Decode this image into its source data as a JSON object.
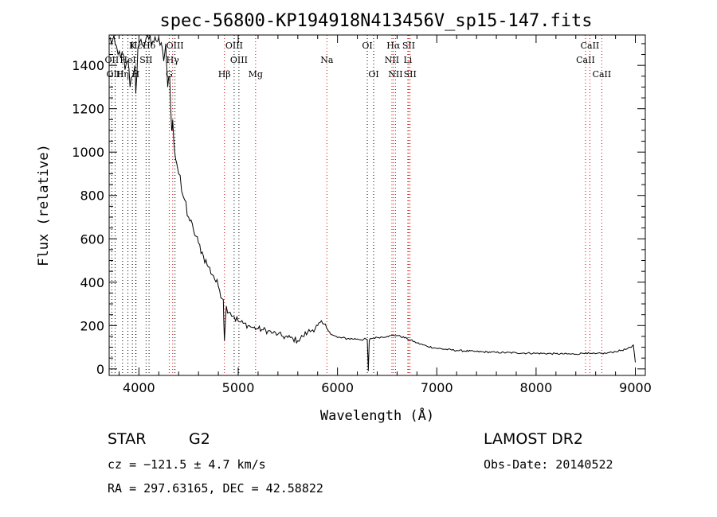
{
  "chart_data": {
    "type": "line",
    "title": "spec-56800-KP194918N413456V_sp15-147.fits",
    "xlabel": "Wavelength (Å)",
    "ylabel": "Flux (relative)",
    "xlim": [
      3700,
      9100
    ],
    "ylim": [
      -30,
      1540
    ],
    "xticks": [
      4000,
      5000,
      6000,
      7000,
      8000,
      9000
    ],
    "yticks": [
      0,
      200,
      400,
      600,
      800,
      1000,
      1200,
      1400
    ],
    "grid": false,
    "series": [
      {
        "x": [
          3700,
          3760,
          3790,
          3830,
          3860,
          3890,
          3910,
          3935,
          3960,
          3968,
          3990,
          4020,
          4060,
          4100,
          4150,
          4200,
          4250,
          4270,
          4290,
          4310,
          4330,
          4340,
          4360,
          4380,
          4400,
          4430,
          4460,
          4500,
          4550,
          4600,
          4650,
          4700,
          4750,
          4800,
          4850,
          4861,
          4880,
          4920,
          4960,
          5000,
          5050,
          5100,
          5150,
          5200,
          5250,
          5300,
          5350,
          5400,
          5450,
          5500,
          5550,
          5600,
          5650,
          5700,
          5750,
          5800,
          5850,
          5890,
          5920,
          5960,
          6000,
          6100,
          6200,
          6300,
          6310,
          6320,
          6330,
          6400,
          6500,
          6563,
          6600,
          6700,
          6800,
          6900,
          7000,
          7200,
          7400,
          7600,
          7800,
          8000,
          8200,
          8400,
          8500,
          8542,
          8600,
          8700,
          8800,
          8900,
          8960,
          8980,
          9000
        ],
        "y": [
          1520,
          1500,
          1450,
          1460,
          1380,
          1420,
          1300,
          1350,
          1400,
          1270,
          1480,
          1520,
          1500,
          1520,
          1510,
          1530,
          1420,
          1500,
          1300,
          1350,
          1100,
          1150,
          1000,
          950,
          900,
          820,
          780,
          700,
          640,
          580,
          520,
          470,
          430,
          380,
          320,
          130,
          290,
          260,
          240,
          220,
          210,
          200,
          190,
          185,
          180,
          175,
          165,
          160,
          150,
          145,
          140,
          130,
          150,
          170,
          180,
          200,
          210,
          190,
          170,
          155,
          145,
          140,
          138,
          135,
          -10,
          130,
          140,
          145,
          150,
          155,
          155,
          140,
          120,
          105,
          95,
          85,
          80,
          76,
          74,
          72,
          70,
          68,
          75,
          70,
          70,
          72,
          80,
          90,
          100,
          110,
          30
        ]
      }
    ],
    "lines": [
      {
        "name": "Hε",
        "wl": 3970,
        "color": "#000000",
        "row": 1
      },
      {
        "name": "K",
        "wl": 3934,
        "color": "#000000",
        "row": 1
      },
      {
        "name": "Hδ",
        "wl": 4102,
        "color": "#000000",
        "row": 1
      },
      {
        "name": "OIII",
        "wl": 4363,
        "color": "#000000",
        "row": 1
      },
      {
        "name": "OIII",
        "wl": 4959,
        "color": "#000000",
        "row": 1
      },
      {
        "name": "OI",
        "wl": 6300,
        "color": "#000000",
        "row": 1
      },
      {
        "name": "Hα",
        "wl": 6563,
        "color": "#d40000",
        "row": 1
      },
      {
        "name": "SII",
        "wl": 6717,
        "color": "#d40000",
        "row": 1
      },
      {
        "name": "CaII",
        "wl": 8542,
        "color": "#d40000",
        "row": 1
      },
      {
        "name": "OII",
        "wl": 3727,
        "color": "#000000",
        "row": 2
      },
      {
        "name": "HeI",
        "wl": 3889,
        "color": "#000000",
        "row": 2
      },
      {
        "name": "SII",
        "wl": 4072,
        "color": "#000000",
        "row": 2
      },
      {
        "name": "Hγ",
        "wl": 4340,
        "color": "#d40000",
        "row": 2
      },
      {
        "name": "OIII",
        "wl": 5007,
        "color": "#000000",
        "row": 2
      },
      {
        "name": "Na",
        "wl": 5893,
        "color": "#d40000",
        "row": 2
      },
      {
        "name": "NII",
        "wl": 6548,
        "color": "#d40000",
        "row": 2
      },
      {
        "name": "Li",
        "wl": 6708,
        "color": "#d40000",
        "row": 2
      },
      {
        "name": "CaII",
        "wl": 8498,
        "color": "#d40000",
        "row": 2
      },
      {
        "name": "OIII",
        "wl": 3760,
        "color": "#000000",
        "row": 3
      },
      {
        "name": "Hη",
        "wl": 3835,
        "color": "#000000",
        "row": 3
      },
      {
        "name": "H",
        "wl": 3968,
        "color": "#000000",
        "row": 3
      },
      {
        "name": "G",
        "wl": 4305,
        "color": "#d40000",
        "row": 3
      },
      {
        "name": "Hβ",
        "wl": 4861,
        "color": "#d40000",
        "row": 3
      },
      {
        "name": "Mg",
        "wl": 5175,
        "color": "#d40000",
        "row": 3
      },
      {
        "name": "OI",
        "wl": 6364,
        "color": "#000000",
        "row": 3
      },
      {
        "name": "NII",
        "wl": 6584,
        "color": "#d40000",
        "row": 3
      },
      {
        "name": "SII",
        "wl": 6731,
        "color": "#d40000",
        "row": 3
      },
      {
        "name": "CaII",
        "wl": 8662,
        "color": "#d40000",
        "row": 3
      }
    ]
  },
  "info": {
    "class": "STAR",
    "subclass": "G2",
    "survey": "LAMOST DR2",
    "redshift": "cz = −121.5 ± 4.7 km/s",
    "obs_date": "Obs-Date: 20140522",
    "coords": "RA = 297.63165, DEC =  42.58822"
  }
}
